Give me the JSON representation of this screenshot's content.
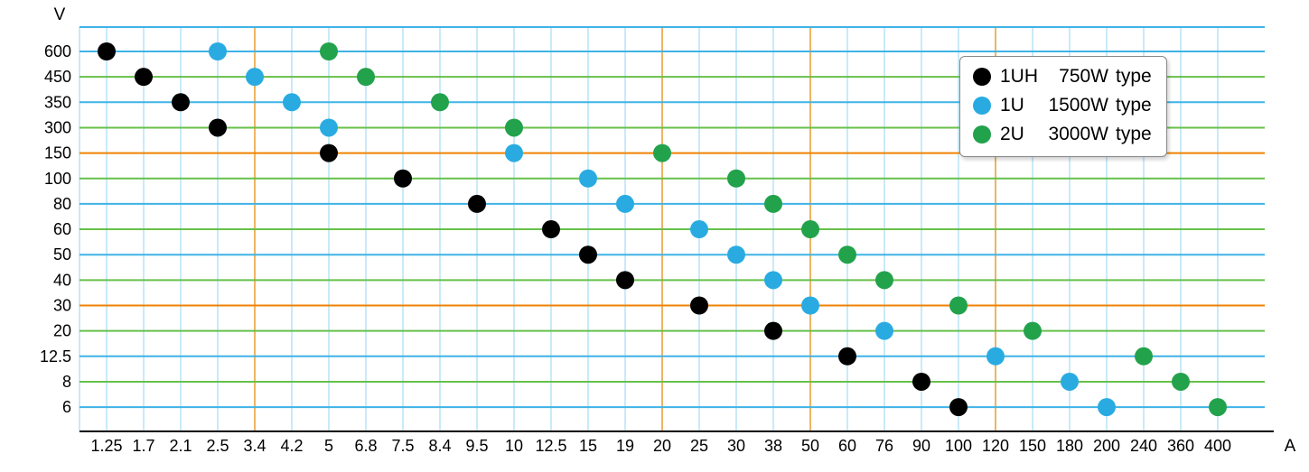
{
  "axes": {
    "y_unit": "V",
    "x_unit": "A"
  },
  "legend": {
    "items": [
      {
        "code": "1UH",
        "power": "750W",
        "suffix": "type"
      },
      {
        "code": "1U",
        "power": "1500W",
        "suffix": "type"
      },
      {
        "code": "2U",
        "power": "3000W",
        "suffix": "type"
      }
    ]
  },
  "chart_data": {
    "type": "scatter",
    "title": "",
    "xlabel": "A",
    "ylabel": "V",
    "legend_position": "top-right",
    "x_categories": [
      "1.25",
      "1.7",
      "2.1",
      "2.5",
      "3.4",
      "4.2",
      "5",
      "6.8",
      "7.5",
      "8.4",
      "9.5",
      "10",
      "12.5",
      "15",
      "19",
      "20",
      "25",
      "30",
      "38",
      "50",
      "60",
      "76",
      "90",
      "100",
      "120",
      "150",
      "180",
      "200",
      "240",
      "360",
      "400"
    ],
    "y_categories": [
      "600",
      "450",
      "350",
      "300",
      "150",
      "100",
      "80",
      "60",
      "50",
      "40",
      "30",
      "20",
      "12.5",
      "8",
      "6"
    ],
    "grid": {
      "hline_colors_by_row": [
        "#3fb3e6",
        "#67c04a",
        "#3fb3e6",
        "#67c04a",
        "#ef8200",
        "#67c04a",
        "#3fb3e6",
        "#67c04a",
        "#3fb3e6",
        "#67c04a",
        "#ef8200",
        "#67c04a",
        "#3fb3e6",
        "#67c04a",
        "#3fb3e6"
      ],
      "top_border_color": "#3fb3e6",
      "vline_color": "#a5dcf3",
      "vline_orange_color": "#e9a13e",
      "orange_x_ticks": [
        "3.4",
        "20",
        "50",
        "120"
      ],
      "axis_color": "#000000"
    },
    "series": [
      {
        "name": "1UH",
        "label": "1UH 750W type",
        "color": "#000000",
        "points": [
          [
            "1.25",
            "600"
          ],
          [
            "1.7",
            "450"
          ],
          [
            "2.1",
            "350"
          ],
          [
            "2.5",
            "300"
          ],
          [
            "5",
            "150"
          ],
          [
            "7.5",
            "100"
          ],
          [
            "9.5",
            "80"
          ],
          [
            "12.5",
            "60"
          ],
          [
            "15",
            "50"
          ],
          [
            "19",
            "40"
          ],
          [
            "25",
            "30"
          ],
          [
            "38",
            "20"
          ],
          [
            "60",
            "12.5"
          ],
          [
            "90",
            "8"
          ],
          [
            "100",
            "6"
          ]
        ]
      },
      {
        "name": "1U",
        "label": "1U 1500W type",
        "color": "#29abe2",
        "points": [
          [
            "2.5",
            "600"
          ],
          [
            "3.4",
            "450"
          ],
          [
            "4.2",
            "350"
          ],
          [
            "5",
            "300"
          ],
          [
            "10",
            "150"
          ],
          [
            "15",
            "100"
          ],
          [
            "19",
            "80"
          ],
          [
            "25",
            "60"
          ],
          [
            "30",
            "50"
          ],
          [
            "38",
            "40"
          ],
          [
            "50",
            "30"
          ],
          [
            "76",
            "20"
          ],
          [
            "120",
            "12.5"
          ],
          [
            "180",
            "8"
          ],
          [
            "200",
            "6"
          ]
        ]
      },
      {
        "name": "2U",
        "label": "2U 3000W type",
        "color": "#23a24c",
        "points": [
          [
            "5",
            "600"
          ],
          [
            "6.8",
            "450"
          ],
          [
            "8.4",
            "350"
          ],
          [
            "10",
            "300"
          ],
          [
            "20",
            "150"
          ],
          [
            "30",
            "100"
          ],
          [
            "38",
            "80"
          ],
          [
            "50",
            "60"
          ],
          [
            "60",
            "50"
          ],
          [
            "76",
            "40"
          ],
          [
            "100",
            "30"
          ],
          [
            "150",
            "20"
          ],
          [
            "240",
            "12.5"
          ],
          [
            "360",
            "8"
          ],
          [
            "400",
            "6"
          ]
        ]
      }
    ]
  }
}
